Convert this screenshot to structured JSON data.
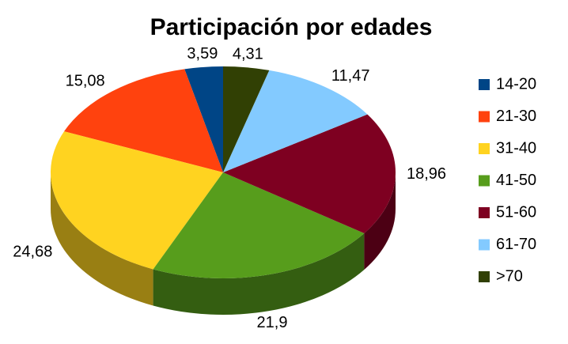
{
  "chart_data": {
    "type": "pie3d",
    "title": "Participación por edades",
    "categories": [
      "14-20",
      "21-30",
      "31-40",
      "41-50",
      "51-60",
      "61-70",
      ">70"
    ],
    "values": [
      3.59,
      15.08,
      24.68,
      21.9,
      18.96,
      11.47,
      4.31
    ],
    "value_labels": [
      "3,59",
      "15,08",
      "24,68",
      "21,9",
      "18,96",
      "11,47",
      "4,31"
    ],
    "colors": [
      "#004586",
      "#ff420e",
      "#ffd320",
      "#579d1c",
      "#7e0021",
      "#83caff",
      "#314004"
    ],
    "legend": "right"
  }
}
